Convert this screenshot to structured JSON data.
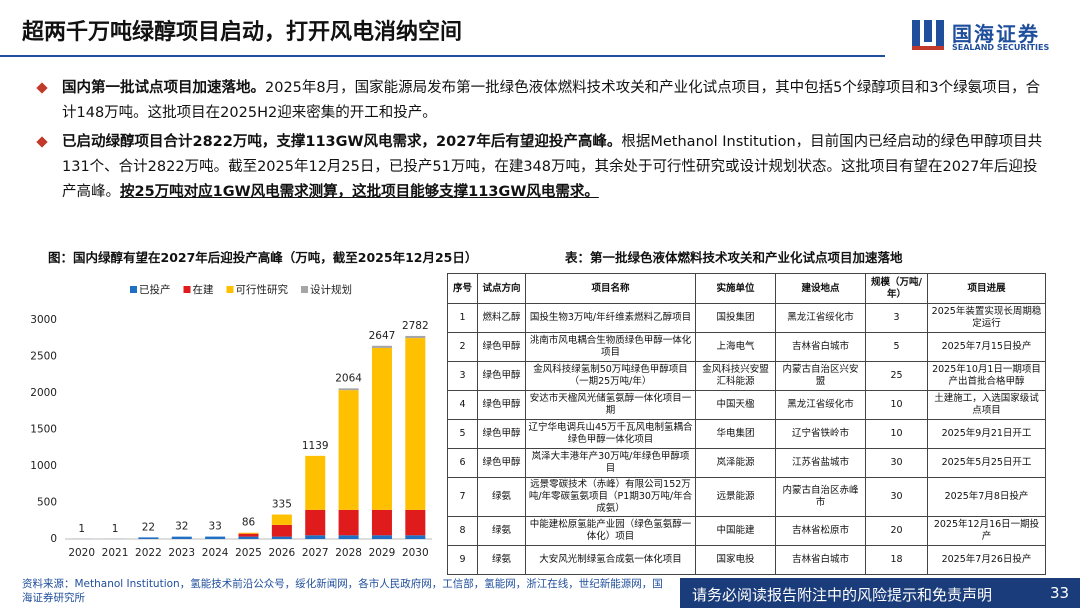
{
  "header": {
    "title": "超两千万吨绿醇项目启动，打开风电消纳空间",
    "logo": "国海证券",
    "logo_en": "SEALAND SECURITIES"
  },
  "bullets": [
    {
      "bold": "国内第一批试点项目加速落地。",
      "text": "2025年8月，国家能源局发布第一批绿色液体燃料技术攻关和产业化试点项目，其中包括5个绿醇项目和3个绿氨项目，合计148万吨。这批项目在2025H2迎来密集的开工和投产。"
    },
    {
      "bold": "已启动绿醇项目合计2822万吨，支撑113GW风电需求，2027年后有望迎投产高峰。",
      "text": "根据Methanol Institution，目前国内已经启动的绿色甲醇项目共131个、合计2822万吨。截至2025年12月25日，已投产51万吨，在建348万吨，其余处于可行性研究或设计规划状态。这批项目有望在2027年后迎投产高峰。",
      "underline": "按25万吨对应1GW风电需求测算，这批项目能够支撑113GW风电需求。"
    }
  ],
  "chart_data": {
    "type": "stacked_bar",
    "title": "图：国内绿醇有望在2027年后迎投产高峰（万吨，截至2025年12月25日）",
    "categories": [
      "2020",
      "2021",
      "2022",
      "2023",
      "2024",
      "2025",
      "2026",
      "2027",
      "2028",
      "2029",
      "2030"
    ],
    "series": [
      {
        "name": "已投产",
        "color": "#1f6fc5",
        "values": [
          1,
          1,
          22,
          32,
          33,
          33,
          33,
          51,
          51,
          51,
          51
        ]
      },
      {
        "name": "在建",
        "color": "#e01b1b",
        "values": [
          0,
          0,
          0,
          0,
          0,
          40,
          160,
          348,
          348,
          348,
          348
        ]
      },
      {
        "name": "可行性研究",
        "color": "#ffc000",
        "values": [
          0,
          0,
          0,
          0,
          0,
          13,
          142,
          740,
          1640,
          2218,
          2353
        ]
      },
      {
        "name": "设计规划",
        "color": "#a6a6a6",
        "values": [
          0,
          0,
          0,
          0,
          0,
          0,
          0,
          0,
          25,
          30,
          30
        ]
      }
    ],
    "totals": [
      1,
      1,
      22,
      32,
      33,
      86,
      335,
      1139,
      2064,
      2647,
      2782
    ],
    "ylim": [
      0,
      3000
    ],
    "yticks": [
      0,
      500,
      1000,
      1500,
      2000,
      2500,
      3000
    ],
    "grid": false,
    "legend": "top"
  },
  "table": {
    "title": "表：第一批绿色液体燃料技术攻关和产业化试点项目加速落地",
    "headers": [
      "序号",
      "试点方向",
      "项目名称",
      "实施单位",
      "建设地点",
      "规模（万吨/年）",
      "项目进展"
    ],
    "rows": [
      [
        "1",
        "燃料乙醇",
        "国投生物3万吨/年纤维素燃料乙醇项目",
        "国投集团",
        "黑龙江省绥化市",
        "3",
        "2025年装置实现长周期稳定运行"
      ],
      [
        "2",
        "绿色甲醇",
        "洮南市风电耦合生物质绿色甲醇一体化项目",
        "上海电气",
        "吉林省白城市",
        "5",
        "2025年7月15日投产"
      ],
      [
        "3",
        "绿色甲醇",
        "金风科技绿氢制50万吨绿色甲醇项目（一期25万吨/年）",
        "金风科技兴安盟汇科能源",
        "内蒙古自治区兴安盟",
        "25",
        "2025年10月1日一期项目产出首批合格甲醇"
      ],
      [
        "4",
        "绿色甲醇",
        "安达市天楹风光储氢氨醇一体化项目一期",
        "中国天楹",
        "黑龙江省绥化市",
        "10",
        "土建施工，入选国家级试点项目"
      ],
      [
        "5",
        "绿色甲醇",
        "辽宁华电调兵山45万千瓦风电制氢耦合绿色甲醇一体化项目",
        "华电集团",
        "辽宁省铁岭市",
        "10",
        "2025年9月21日开工"
      ],
      [
        "6",
        "绿色甲醇",
        "岚泽大丰港年产30万吨/年绿色甲醇项目",
        "岚泽能源",
        "江苏省盐城市",
        "30",
        "2025年5月25日开工"
      ],
      [
        "7",
        "绿氨",
        "远景零碳技术（赤峰）有限公司152万吨/年零碳氢氨项目（P1期30万吨/年合成氨）",
        "远景能源",
        "内蒙古自治区赤峰市",
        "30",
        "2025年7月8日投产"
      ],
      [
        "8",
        "绿氨",
        "中能建松原氢能产业园（绿色氢氨醇一体化）项目",
        "中国能建",
        "吉林省松原市",
        "20",
        "2025年12月16日一期投产"
      ],
      [
        "9",
        "绿氨",
        "大安风光制绿氢合成氨一体化项目",
        "国家电投",
        "吉林省白城市",
        "18",
        "2025年7月26日投产"
      ]
    ]
  },
  "footer": {
    "source": "资料来源：Methanol Institution，氢能技术前沿公众号，绥化新闻网，各市人民政府网，工信部，氢能网，浙江在线，世纪新能源网，国海证券研究所",
    "disclaimer": "请务必阅读报告附注中的风险提示和免责声明",
    "page": 33
  }
}
